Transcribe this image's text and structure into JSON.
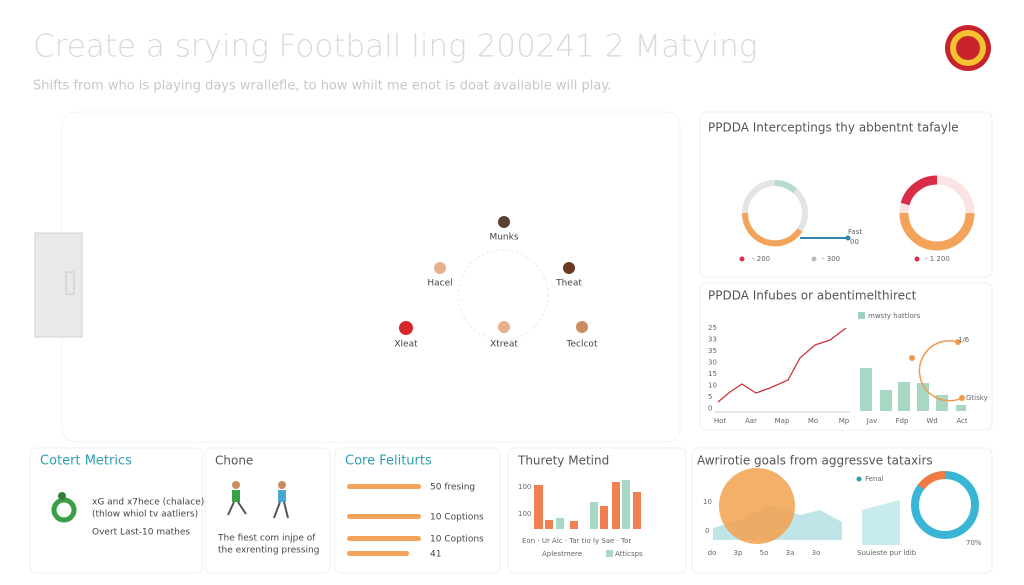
{
  "header": {
    "title": "Create a srying Football ling 200241 2 Matying",
    "subtitle": "Shifts from who is playing days wrallefle, to how whilt me enot is doat available will play."
  },
  "pitch": {
    "players": [
      "Munks",
      "Hacel",
      "Theat",
      "Xleat",
      "Xtreat",
      "Teclcot"
    ]
  },
  "ppda_intercepts": {
    "title": "PPDDA Interceptings thy abbentnt tafayle",
    "tag": "Fast",
    "tag_value": "00",
    "legend": [
      "- 200",
      "- 300",
      "- 1 200"
    ]
  },
  "ppda_influence": {
    "title": "PPDDA Infubes or abentimelthirect",
    "y_labels": [
      "25",
      "33",
      "35",
      "30",
      "15",
      "10",
      "5",
      "0"
    ],
    "x_labels": [
      "Hot",
      "Aar",
      "Map",
      "Mo",
      "Mp"
    ],
    "bar_legend": "mwsty hattlors",
    "bar_x_labels": [
      "Jav",
      "Fdp",
      "Wd",
      "Act"
    ],
    "arc_labels": [
      "1/6",
      "Gtisky"
    ]
  },
  "panels": [
    {
      "title": "Cotert Metrics",
      "lines": [
        "xG and x7hece (chalace)",
        "(thlow whiol tv aatliers)",
        "Overt Last-10 mathes"
      ]
    },
    {
      "title": "Chone",
      "lines": [
        "The fiest com injpe of",
        "the exrenting pressing"
      ]
    },
    {
      "title": "Core Feliturts",
      "items": [
        "50 fresing",
        "10 Coptions",
        "10 Coptions",
        "41"
      ]
    },
    {
      "title": "Thurety Metind",
      "y_labels": [
        "100",
        "100"
      ],
      "x_labels": "Eon · Ur   Alc · Tar tio ly Sae · Tor",
      "legend": [
        "Aplestmere",
        "Atticsps"
      ]
    },
    {
      "title": "Awrirotie goals from aggressve tataxirs",
      "y_labels": [
        "10",
        "0"
      ],
      "x_labels": [
        "do",
        "3p",
        "5o",
        "3a",
        "3o"
      ],
      "legend": "Fenal",
      "caption": "Suuieste pur ldib",
      "pct": "70%"
    }
  ]
}
